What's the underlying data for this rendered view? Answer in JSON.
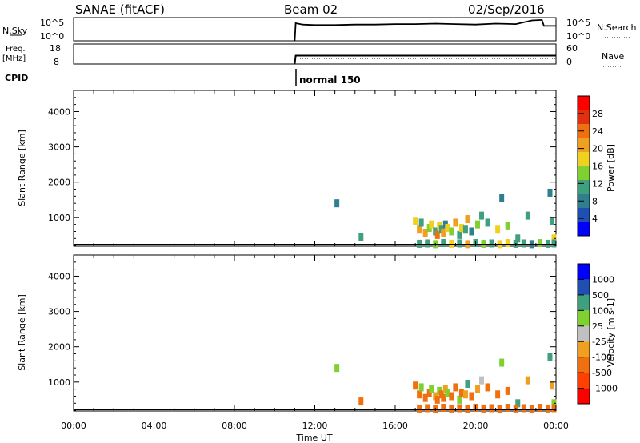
{
  "header": {
    "title": "SANAE (fitACF)",
    "beam": "Beam 02",
    "date": "02/Sep/2016"
  },
  "summary_panels": {
    "left_labels": [
      "N.Sky",
      "Freq.",
      "[MHz]",
      "CPID"
    ],
    "right_labels": [
      "N.Search",
      "Nave"
    ],
    "sky_ticks": [
      "10^5",
      "10^0"
    ],
    "sky_right_ticks": [
      "10^5",
      "10^0"
    ],
    "freq_ticks": [
      "18",
      "8"
    ],
    "nave_ticks": [
      "60",
      "0"
    ],
    "cpid_label": "normal 150",
    "data_start": "11:00"
  },
  "axes": {
    "ylabel": "Slant Range [km]",
    "xlabel": "Time UT",
    "y_ticks": [
      "4000",
      "3000",
      "2000",
      "1000"
    ],
    "x_ticks": [
      "00:00",
      "04:00",
      "08:00",
      "12:00",
      "16:00",
      "20:00",
      "00:00"
    ]
  },
  "colorbars": {
    "power": {
      "label": "Power [dB]",
      "ticks": [
        "28",
        "24",
        "20",
        "16",
        "12",
        "8",
        "4"
      ],
      "colors": [
        "#0000ff",
        "#1f4fb0",
        "#2f7f8f",
        "#3fa07f",
        "#7fd030",
        "#f0d020",
        "#f0a020",
        "#f07010",
        "#e03010",
        "#ff0000"
      ]
    },
    "velocity": {
      "label": "Velocity [m s-1]",
      "ticks": [
        "1000",
        "500",
        "100",
        "25",
        "-25",
        "-100",
        "-500",
        "-1000"
      ],
      "colors": [
        "#ff0000",
        "#ff4000",
        "#f07010",
        "#f0a020",
        "#c0c0c0",
        "#7fd030",
        "#3fa07f",
        "#1f4fb0",
        "#0000ff"
      ]
    }
  },
  "chart_data": [
    {
      "type": "line",
      "title": "N.Sky",
      "ylim": [
        0,
        5
      ],
      "x": [
        11.0,
        11.05,
        11.4,
        12.0,
        13.0,
        14.0,
        15.0,
        16.0,
        17.0,
        18.0,
        19.0,
        20.0,
        21.0,
        22.0,
        22.8,
        23.3,
        23.4,
        24.0
      ],
      "values": [
        0,
        3.8,
        3.5,
        3.4,
        3.4,
        3.5,
        3.5,
        3.6,
        3.6,
        3.7,
        3.6,
        3.5,
        3.7,
        3.6,
        4.4,
        4.5,
        3.2,
        3.2
      ]
    },
    {
      "type": "line",
      "title": "Freq.",
      "ylim": [
        8,
        18
      ],
      "x": [
        11.0,
        11.05,
        24.0
      ],
      "values": [
        8,
        12.2,
        12.2
      ]
    },
    {
      "type": "scatter",
      "title": "Power",
      "xlabel": "Time UT",
      "ylabel": "Slant Range [km]",
      "xlim": [
        0,
        24
      ],
      "ylim": [
        180,
        4600
      ],
      "x": [
        13.1,
        14.3,
        17.0,
        17.2,
        17.3,
        17.5,
        17.7,
        17.8,
        18.0,
        18.1,
        18.2,
        18.3,
        18.4,
        18.5,
        18.6,
        18.8,
        19.0,
        19.2,
        19.3,
        19.5,
        19.6,
        19.8,
        20.1,
        20.3,
        20.6,
        21.1,
        21.3,
        21.6,
        22.1,
        22.6,
        23.7,
        23.8,
        23.9,
        17.2,
        17.6,
        18.0,
        18.4,
        18.8,
        19.2,
        19.6,
        20.0,
        20.4,
        20.8,
        21.2,
        21.6,
        22.0,
        22.4,
        22.8,
        23.2,
        23.6,
        23.9
      ],
      "y": [
        1400,
        450,
        900,
        650,
        850,
        550,
        700,
        800,
        600,
        500,
        750,
        650,
        550,
        800,
        700,
        600,
        850,
        500,
        700,
        650,
        950,
        600,
        800,
        1050,
        850,
        650,
        1550,
        750,
        400,
        1050,
        1700,
        900,
        400,
        250,
        260,
        240,
        270,
        250,
        260,
        240,
        270,
        250,
        260,
        240,
        270,
        250,
        260,
        240,
        270,
        250,
        260
      ],
      "values": [
        8,
        10,
        16,
        20,
        12,
        22,
        14,
        18,
        10,
        24,
        16,
        12,
        20,
        8,
        18,
        14,
        22,
        10,
        16,
        12,
        20,
        8,
        14,
        10,
        12,
        16,
        8,
        14,
        12,
        10,
        8,
        12,
        16,
        10,
        12,
        14,
        10,
        16,
        12,
        20,
        10,
        14,
        12,
        16,
        18,
        10,
        12,
        8,
        14,
        10,
        12
      ]
    },
    {
      "type": "scatter",
      "title": "Velocity",
      "xlabel": "Time UT",
      "ylabel": "Slant Range [km]",
      "xlim": [
        0,
        24
      ],
      "ylim": [
        180,
        4600
      ],
      "x": [
        13.1,
        14.3,
        17.0,
        17.2,
        17.3,
        17.5,
        17.7,
        17.8,
        18.0,
        18.1,
        18.2,
        18.3,
        18.4,
        18.5,
        18.6,
        18.8,
        19.0,
        19.2,
        19.3,
        19.5,
        19.6,
        19.8,
        20.1,
        20.3,
        20.6,
        21.1,
        21.3,
        21.6,
        22.1,
        22.6,
        23.7,
        23.8,
        23.9,
        17.2,
        17.6,
        18.0,
        18.4,
        18.8,
        19.2,
        19.6,
        20.0,
        20.4,
        20.8,
        21.2,
        21.6,
        22.0,
        22.4,
        22.8,
        23.2,
        23.6,
        23.9
      ],
      "y": [
        1400,
        450,
        900,
        650,
        850,
        550,
        700,
        800,
        600,
        500,
        750,
        650,
        550,
        800,
        700,
        600,
        850,
        500,
        700,
        650,
        950,
        600,
        800,
        1050,
        850,
        650,
        1550,
        750,
        400,
        1050,
        1700,
        900,
        400,
        250,
        260,
        240,
        270,
        250,
        260,
        240,
        270,
        250,
        260,
        240,
        270,
        250,
        260,
        240,
        270,
        250,
        260
      ],
      "values": [
        50,
        -150,
        -200,
        -300,
        80,
        -150,
        -250,
        60,
        -100,
        -350,
        40,
        -200,
        -150,
        -80,
        30,
        -300,
        -120,
        60,
        -250,
        -90,
        150,
        -180,
        -60,
        20,
        -130,
        -200,
        80,
        -150,
        120,
        -40,
        200,
        -100,
        60,
        -150,
        -200,
        -180,
        -250,
        -160,
        -220,
        -140,
        -180,
        -200,
        -160,
        -240,
        -190,
        -170,
        -210,
        -150,
        -180,
        -200,
        -160
      ]
    }
  ]
}
